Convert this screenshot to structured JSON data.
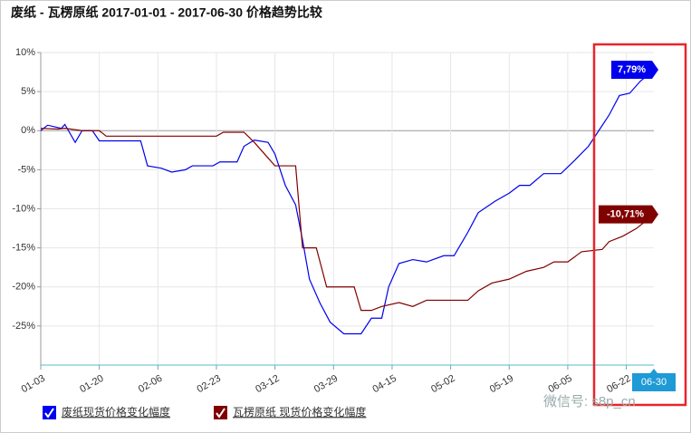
{
  "chart_data": {
    "type": "line",
    "title": "废纸 - 瓦楞原纸 2017-01-01 - 2017-06-30 价格趋势比较",
    "xlim": [
      "01-03",
      "06-30"
    ],
    "xticks": [
      "01-03",
      "01-20",
      "02-06",
      "02-23",
      "03-12",
      "03-29",
      "04-15",
      "05-02",
      "05-19",
      "06-05",
      "06-22",
      "06-30"
    ],
    "ylim": [
      -30,
      10
    ],
    "yticks": [
      {
        "value": -25,
        "label": "-25%"
      },
      {
        "value": -20,
        "label": "-20%"
      },
      {
        "value": -15,
        "label": "-15%"
      },
      {
        "value": -10,
        "label": "-10%"
      },
      {
        "value": -5,
        "label": "-5%"
      },
      {
        "value": 0,
        "label": "0%"
      },
      {
        "value": 5,
        "label": "5%"
      },
      {
        "value": 10,
        "label": "10%"
      }
    ],
    "grid": true,
    "series": [
      {
        "name": "废纸现货价格变化幅度",
        "color": "#0000ee",
        "x": [
          "01-03",
          "01-05",
          "01-09",
          "01-10",
          "01-13",
          "01-15",
          "01-18",
          "01-20",
          "02-01",
          "02-03",
          "02-07",
          "02-10",
          "02-14",
          "02-16",
          "02-22",
          "02-24",
          "03-01",
          "03-03",
          "03-06",
          "03-10",
          "03-12",
          "03-15",
          "03-18",
          "03-20",
          "03-22",
          "03-25",
          "03-28",
          "04-01",
          "04-06",
          "04-09",
          "04-12",
          "04-14",
          "04-17",
          "04-21",
          "04-25",
          "04-30",
          "05-03",
          "05-07",
          "05-10",
          "05-15",
          "05-19",
          "05-22",
          "05-25",
          "05-29",
          "06-03",
          "06-07",
          "06-11",
          "06-14",
          "06-17",
          "06-20",
          "06-23",
          "06-26",
          "06-30"
        ],
        "values": [
          0,
          0.7,
          0.3,
          0.8,
          -1.5,
          0,
          0,
          -1.3,
          -1.3,
          -4.5,
          -4.8,
          -5.3,
          -5,
          -4.5,
          -4.5,
          -4,
          -4,
          -2,
          -1.2,
          -1.5,
          -3,
          -7,
          -9.5,
          -14,
          -19,
          -22,
          -24.5,
          -26,
          -26,
          -24,
          -24,
          -20,
          -17,
          -16.5,
          -16.8,
          -16,
          -16,
          -13,
          -10.5,
          -9,
          -8,
          -7,
          -7,
          -5.5,
          -5.5,
          -3.8,
          -2,
          0,
          2,
          4.5,
          4.8,
          6.3,
          7.79
        ],
        "value_labels": [
          null,
          null,
          null,
          null,
          null,
          null,
          null,
          null,
          null,
          null,
          null,
          null,
          null,
          null,
          null,
          null,
          null,
          null,
          null,
          null,
          null,
          null,
          null,
          null,
          null,
          null,
          null,
          null,
          null,
          null,
          null,
          null,
          null,
          null,
          null,
          null,
          null,
          null,
          null,
          null,
          null,
          null,
          null,
          null,
          null,
          null,
          null,
          null,
          null,
          null,
          null,
          null,
          "7,79%"
        ]
      },
      {
        "name": "瓦楞原纸 现货价格变化幅度",
        "color": "#800000",
        "x": [
          "01-03",
          "01-08",
          "01-10",
          "01-15",
          "01-20",
          "01-22",
          "02-10",
          "02-23",
          "02-25",
          "03-03",
          "03-06",
          "03-10",
          "03-12",
          "03-18",
          "03-20",
          "03-24",
          "03-27",
          "04-01",
          "04-04",
          "04-06",
          "04-09",
          "04-12",
          "04-17",
          "04-21",
          "04-25",
          "05-07",
          "05-10",
          "05-14",
          "05-19",
          "05-24",
          "05-29",
          "06-01",
          "06-05",
          "06-09",
          "06-15",
          "06-17",
          "06-21",
          "06-25",
          "06-30"
        ],
        "values": [
          0.3,
          0.2,
          0.3,
          0,
          0,
          -0.7,
          -0.7,
          -0.7,
          -0.2,
          -0.2,
          -1.5,
          -3.5,
          -4.5,
          -4.5,
          -15,
          -15,
          -20,
          -20,
          -20,
          -23,
          -23,
          -22.5,
          -22,
          -22.5,
          -21.7,
          -21.7,
          -20.5,
          -19.5,
          -19,
          -18,
          -17.5,
          -16.8,
          -16.8,
          -15.5,
          -15.2,
          -14.2,
          -13.5,
          -12.5,
          -10.71
        ],
        "value_labels": [
          null,
          null,
          null,
          null,
          null,
          null,
          null,
          null,
          null,
          null,
          null,
          null,
          null,
          null,
          null,
          null,
          null,
          null,
          null,
          null,
          null,
          null,
          null,
          null,
          null,
          null,
          null,
          null,
          null,
          null,
          null,
          null,
          null,
          null,
          null,
          null,
          null,
          null,
          "-10,71%"
        ]
      }
    ],
    "watermark": "微信号: s8p_cn"
  }
}
